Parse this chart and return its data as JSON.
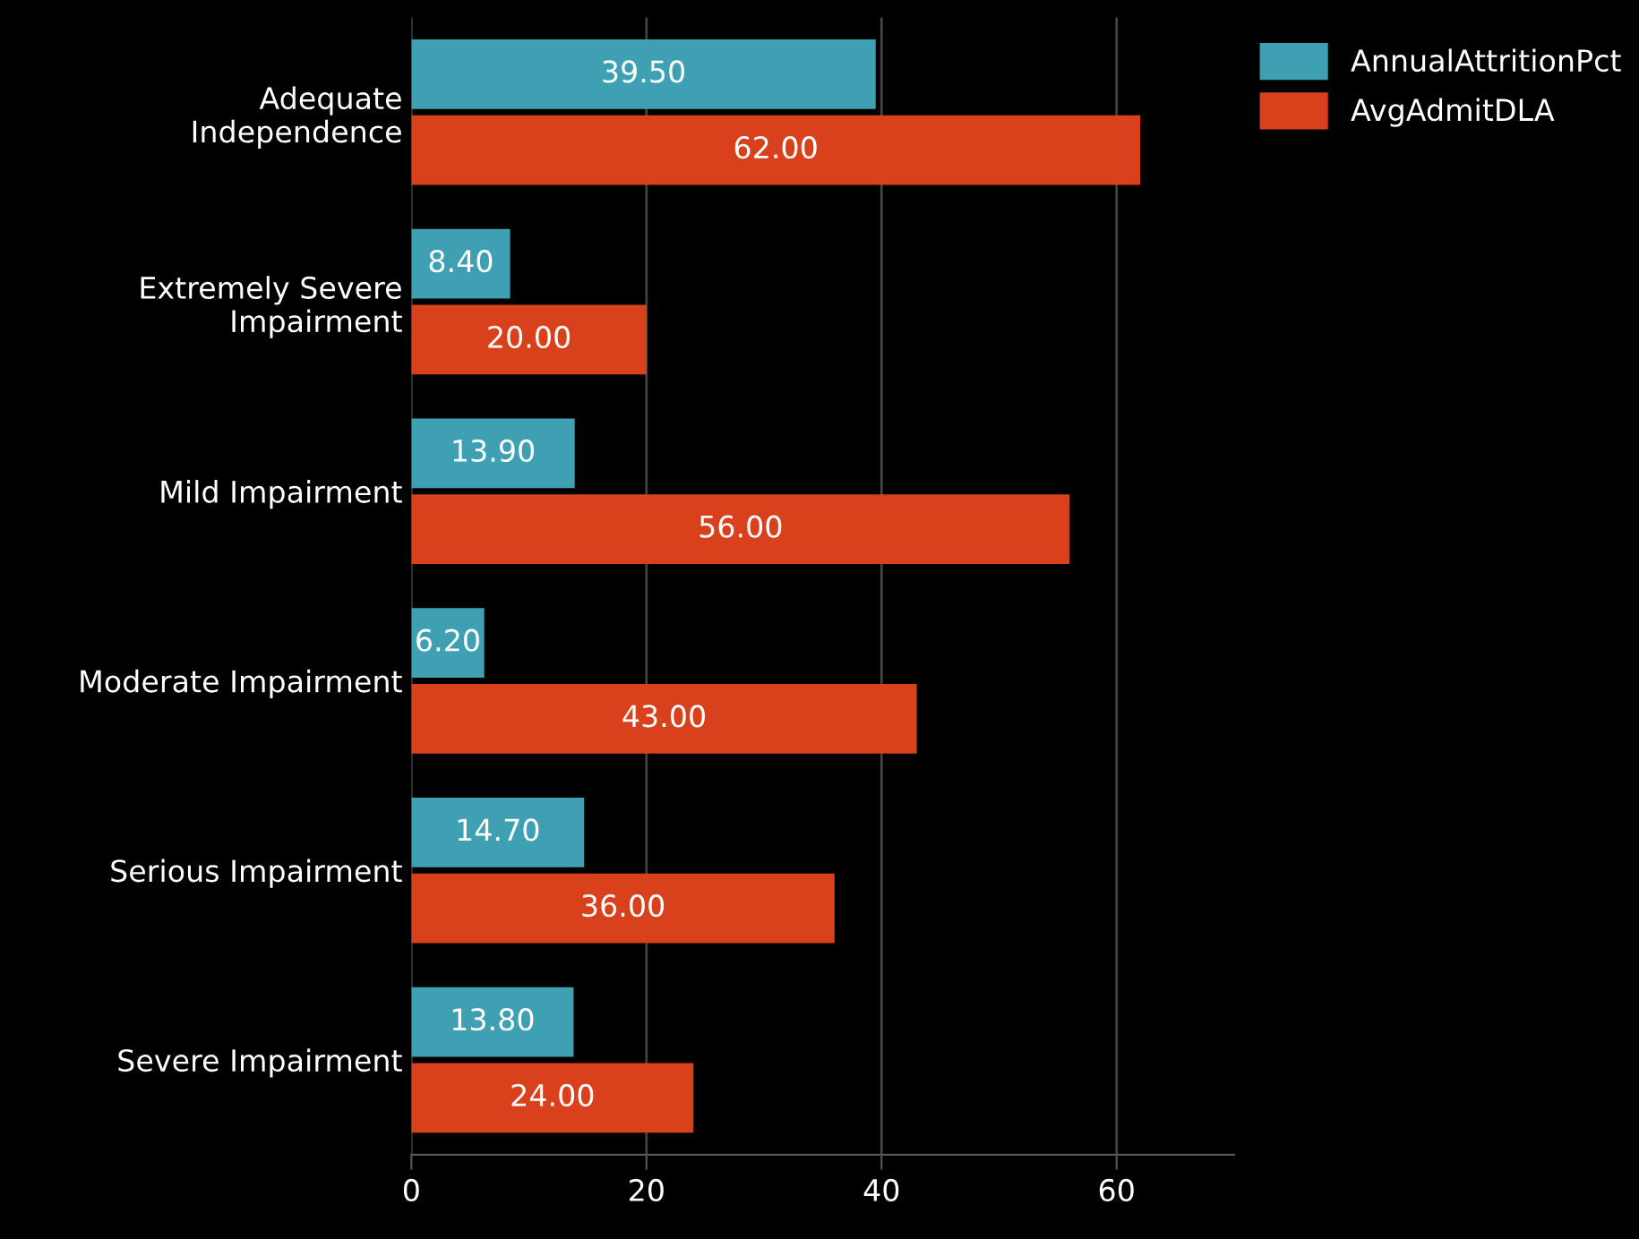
{
  "chart_data": {
    "type": "bar",
    "orientation": "horizontal",
    "categories": [
      "Adequate\nIndependence",
      "Extremely Severe\nImpairment",
      "Mild Impairment",
      "Moderate Impairment",
      "Serious Impairment",
      "Severe Impairment"
    ],
    "series": [
      {
        "name": "AnnualAttritionPct",
        "color": "#3fa0b3",
        "values": [
          39.5,
          8.4,
          13.9,
          6.2,
          14.7,
          13.8
        ],
        "value_labels": [
          "39.50",
          "8.40",
          "13.90",
          "6.20",
          "14.70",
          "13.80"
        ]
      },
      {
        "name": "AvgAdmitDLA",
        "color": "#d9401c",
        "values": [
          62,
          20,
          56,
          43,
          36,
          24
        ],
        "value_labels": [
          "62.00",
          "20.00",
          "56.00",
          "43.00",
          "36.00",
          "24.00"
        ]
      }
    ],
    "xlim": [
      0,
      70
    ],
    "xticks": [
      0,
      20,
      40,
      60
    ],
    "grid": "x",
    "legend": "top right"
  }
}
